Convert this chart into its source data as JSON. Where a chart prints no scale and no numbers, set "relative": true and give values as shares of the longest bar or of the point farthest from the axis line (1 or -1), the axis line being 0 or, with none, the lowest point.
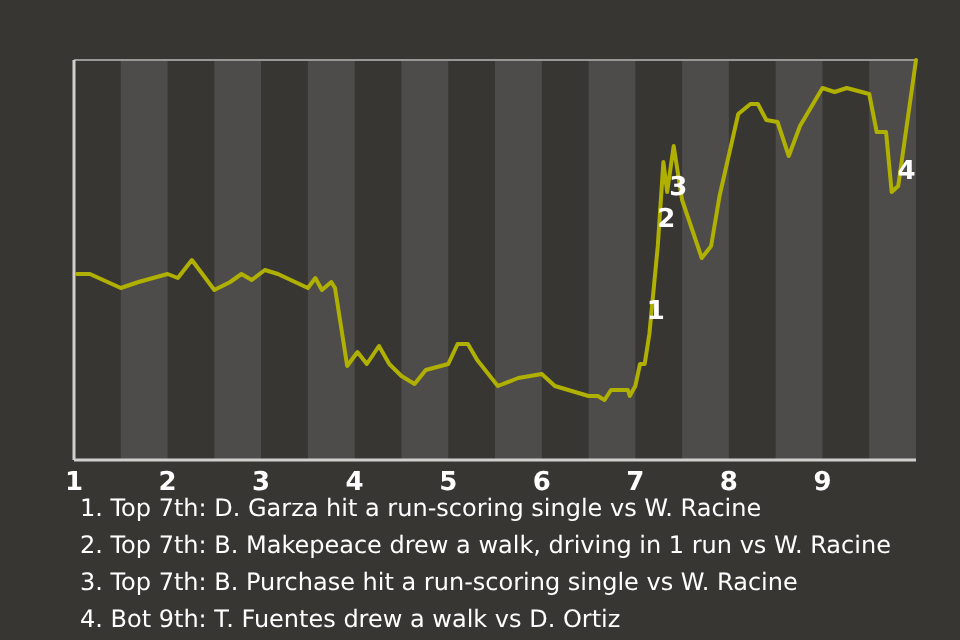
{
  "chart_data": {
    "type": "line",
    "relative": true,
    "xlim": [
      1,
      10
    ],
    "xticks": [
      1,
      2,
      3,
      4,
      5,
      6,
      7,
      8,
      9
    ],
    "bands": [
      {
        "axis": "x",
        "from": 1.5,
        "to": 2,
        "color": "#4d4c4a"
      },
      {
        "axis": "x",
        "from": 2.5,
        "to": 3,
        "color": "#4d4c4a"
      },
      {
        "axis": "x",
        "from": 3.5,
        "to": 4,
        "color": "#4d4c4a"
      },
      {
        "axis": "x",
        "from": 4.5,
        "to": 5,
        "color": "#4d4c4a"
      },
      {
        "axis": "x",
        "from": 5.5,
        "to": 6,
        "color": "#4d4c4a"
      },
      {
        "axis": "x",
        "from": 6.5,
        "to": 7,
        "color": "#4d4c4a"
      },
      {
        "axis": "x",
        "from": 7.5,
        "to": 8,
        "color": "#4d4c4a"
      },
      {
        "axis": "x",
        "from": 8.5,
        "to": 9,
        "color": "#4d4c4a"
      },
      {
        "axis": "x",
        "from": 9.5,
        "to": 10,
        "color": "#4d4c4a"
      }
    ],
    "x": [
      1.03,
      1.17,
      1.5,
      1.69,
      2.0,
      2.11,
      2.26,
      2.5,
      2.67,
      2.79,
      2.9,
      3.04,
      3.18,
      3.5,
      3.58,
      3.65,
      3.75,
      3.79,
      3.92,
      4.03,
      4.13,
      4.26,
      4.37,
      4.5,
      4.64,
      4.76,
      5.0,
      5.1,
      5.21,
      5.31,
      5.53,
      5.75,
      6.0,
      6.14,
      6.5,
      6.6,
      6.67,
      6.74,
      6.92,
      6.94,
      7.0,
      7.05,
      7.1,
      7.15,
      7.24,
      7.3,
      7.34,
      7.41,
      7.5,
      7.71,
      7.81,
      7.9,
      8.1,
      8.23,
      8.31,
      8.4,
      8.52,
      8.64,
      8.76,
      9.0,
      9.13,
      9.26,
      9.5,
      9.58,
      9.68,
      9.74,
      9.81,
      10.0
    ],
    "series": [
      {
        "color": "#b0b000",
        "values": [
          0.465,
          0.465,
          0.43,
          0.445,
          0.465,
          0.455,
          0.5,
          0.425,
          0.445,
          0.465,
          0.45,
          0.475,
          0.465,
          0.43,
          0.455,
          0.425,
          0.445,
          0.43,
          0.235,
          0.27,
          0.24,
          0.285,
          0.24,
          0.21,
          0.19,
          0.225,
          0.24,
          0.29,
          0.29,
          0.25,
          0.185,
          0.205,
          0.215,
          0.185,
          0.16,
          0.16,
          0.15,
          0.175,
          0.175,
          0.16,
          0.185,
          0.24,
          0.24,
          0.315,
          0.535,
          0.745,
          0.67,
          0.785,
          0.65,
          0.505,
          0.535,
          0.66,
          0.865,
          0.89,
          0.89,
          0.85,
          0.845,
          0.76,
          0.835,
          0.93,
          0.92,
          0.93,
          0.915,
          0.82,
          0.82,
          0.67,
          0.685,
          1.0
        ]
      }
    ],
    "line_style": "solid",
    "marker": "none",
    "annotations": [
      {
        "text": "1",
        "x": 7.22,
        "y": 0.37
      },
      {
        "text": "2",
        "x": 7.33,
        "y": 0.6
      },
      {
        "text": "3",
        "x": 7.46,
        "y": 0.68
      },
      {
        "text": "4",
        "x": 9.9,
        "y": 0.72
      },
      "1. Top 7th: D. Garza hit a run-scoring single vs W. Racine",
      "2. Top 7th: B. Makepeace drew a walk, driving in 1 run vs W. Racine",
      "3. Top 7th: B. Purchase hit a run-scoring single vs W. Racine",
      "4. Bot 9th: T. Fuentes drew a walk vs D. Ortiz"
    ]
  }
}
